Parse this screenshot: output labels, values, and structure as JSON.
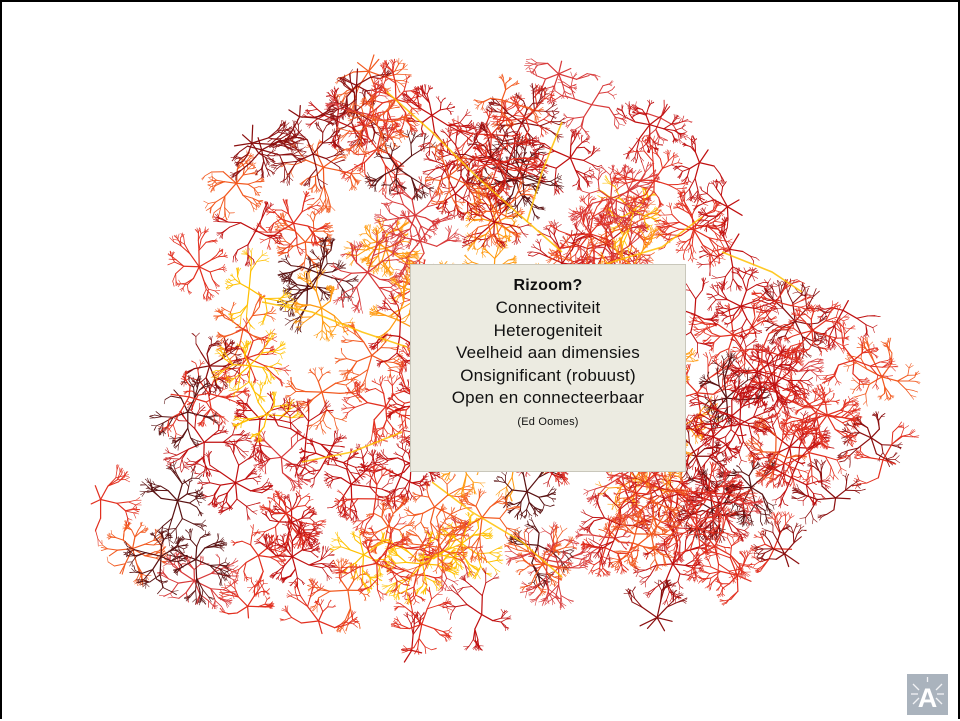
{
  "textbox": {
    "title": "Rizoom?",
    "items": [
      "Connectiviteit",
      "Heterogeniteit",
      "Veelheid aan dimensies",
      "Onsignificant (robuust)",
      "Open en connecteerbaar"
    ],
    "credit": "(Ed Oomes)"
  },
  "network": {
    "colors": [
      "#8b0f0f",
      "#c01010",
      "#e23020",
      "#f25a20",
      "#ff9a10",
      "#ffc000",
      "#5a1212",
      "#d83a3a"
    ],
    "icon": "rhizome-network-image"
  },
  "logo": {
    "icon": "a-logo-icon",
    "letter": "A",
    "colors": {
      "background": "#aab3bd",
      "foreground": "#ffffff"
    }
  }
}
